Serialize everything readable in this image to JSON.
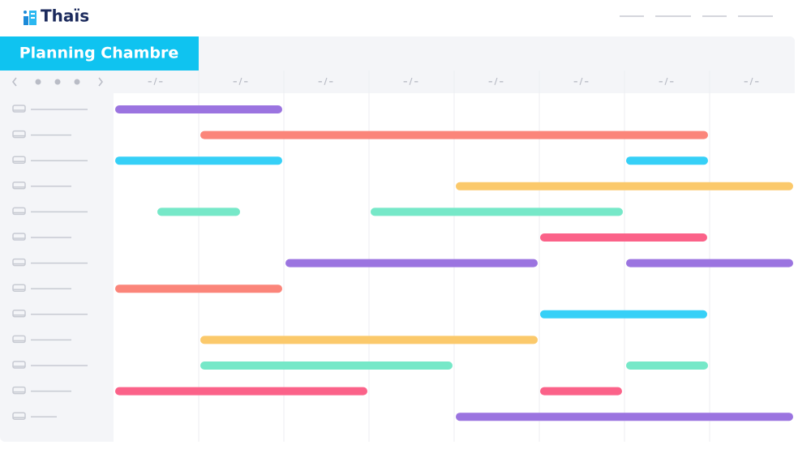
{
  "header": {
    "logo": "Thaïs"
  },
  "planning": {
    "title": "Planning Chambre",
    "dates": [
      "–/–",
      "–/–",
      "–/–",
      "–/–",
      "–/–",
      "–/–",
      "–/–",
      "–/–"
    ]
  }
}
